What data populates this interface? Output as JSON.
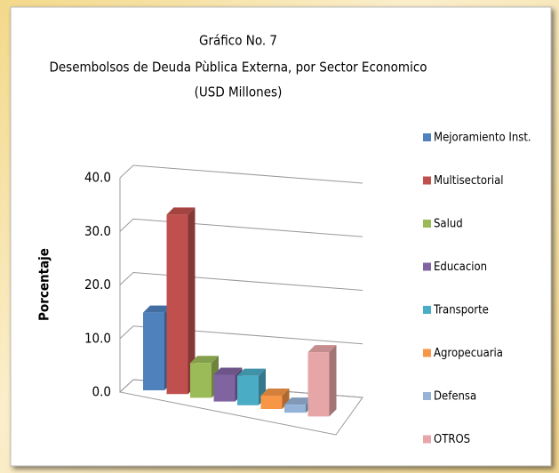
{
  "chart_data": {
    "type": "bar3d",
    "title": "Gráfico No. 7",
    "subtitle": "Desembolsos de Deuda Pùblica Externa, por Sector Economico",
    "unit_note": "(USD Millones)",
    "y_axis_label": "Porcentaje",
    "categories": [
      "Mejoramiento Inst.",
      "Multisectorial",
      "Salud",
      "Educacion",
      "Transporte",
      "Agropecuaria",
      "Defensa",
      "OTROS"
    ],
    "values": [
      14.5,
      33.5,
      6.5,
      5.0,
      5.5,
      2.5,
      1.5,
      12.0
    ],
    "colors": [
      "#4f81bd",
      "#c0504d",
      "#9bbb59",
      "#8064a2",
      "#4bacc6",
      "#f79646",
      "#95b3d7",
      "#e6a6a7"
    ],
    "ylim": [
      0,
      40
    ],
    "yticks": [
      {
        "value": 0,
        "label": "0.0"
      },
      {
        "value": 10,
        "label": "10.0"
      },
      {
        "value": 20,
        "label": "20.0"
      },
      {
        "value": 30,
        "label": "30.0"
      },
      {
        "value": 40,
        "label": "40.0"
      }
    ],
    "grid": true,
    "legend": "right"
  }
}
